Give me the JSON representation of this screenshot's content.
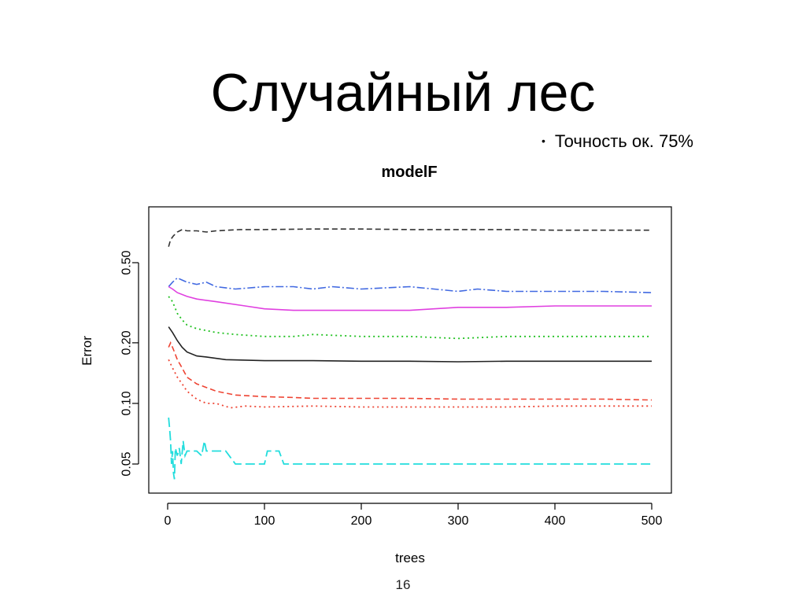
{
  "slide": {
    "title": "Случайный лес",
    "bullet": "Точность ок. 75%",
    "bullet_marker": "•",
    "page_number": "16"
  },
  "chart_data": {
    "type": "line",
    "title": "modelF",
    "xlabel": "trees",
    "ylabel": "Error",
    "xlim": [
      0,
      500
    ],
    "ylim": [
      0.04,
      0.8
    ],
    "y_scale": "log",
    "x_ticks": [
      0,
      100,
      200,
      300,
      400,
      500
    ],
    "x_tick_labels": [
      "0",
      "100",
      "200",
      "300",
      "400",
      "500"
    ],
    "y_ticks": [
      0.05,
      0.1,
      0.2,
      0.5
    ],
    "y_tick_labels": [
      "0.05",
      "0.10",
      "0.20",
      "0.50"
    ],
    "grid": false,
    "legend": "none",
    "series": [
      {
        "color": "#333333",
        "dash": "7 4",
        "width": 1.6,
        "x": [
          1,
          3,
          6,
          10,
          15,
          20,
          30,
          40,
          50,
          75,
          100,
          150,
          200,
          250,
          300,
          350,
          400,
          450,
          500
        ],
        "y": [
          0.6,
          0.65,
          0.68,
          0.71,
          0.73,
          0.72,
          0.72,
          0.71,
          0.72,
          0.73,
          0.73,
          0.735,
          0.735,
          0.73,
          0.73,
          0.73,
          0.725,
          0.725,
          0.725
        ]
      },
      {
        "color": "#4169e1",
        "dash": "10 3 2 3",
        "width": 1.6,
        "x": [
          1,
          5,
          10,
          15,
          20,
          30,
          40,
          50,
          70,
          100,
          130,
          150,
          170,
          200,
          250,
          300,
          320,
          350,
          400,
          450,
          500
        ],
        "y": [
          0.38,
          0.4,
          0.42,
          0.41,
          0.4,
          0.39,
          0.4,
          0.38,
          0.37,
          0.38,
          0.38,
          0.37,
          0.38,
          0.37,
          0.38,
          0.36,
          0.37,
          0.36,
          0.36,
          0.36,
          0.355
        ]
      },
      {
        "color": "#e040e0",
        "dash": "",
        "width": 1.6,
        "x": [
          1,
          5,
          10,
          20,
          30,
          50,
          80,
          100,
          130,
          150,
          200,
          250,
          300,
          350,
          400,
          450,
          500
        ],
        "y": [
          0.38,
          0.37,
          0.355,
          0.34,
          0.33,
          0.32,
          0.305,
          0.295,
          0.29,
          0.29,
          0.29,
          0.29,
          0.3,
          0.3,
          0.305,
          0.305,
          0.305
        ]
      },
      {
        "color": "#22c122",
        "dash": "2 4",
        "width": 1.8,
        "x": [
          1,
          5,
          10,
          15,
          20,
          30,
          40,
          50,
          70,
          100,
          130,
          150,
          200,
          250,
          300,
          350,
          400,
          450,
          500
        ],
        "y": [
          0.34,
          0.32,
          0.28,
          0.26,
          0.245,
          0.235,
          0.23,
          0.225,
          0.22,
          0.215,
          0.215,
          0.22,
          0.215,
          0.215,
          0.21,
          0.215,
          0.215,
          0.215,
          0.215
        ]
      },
      {
        "color": "#222222",
        "dash": "",
        "width": 1.6,
        "x": [
          1,
          5,
          10,
          15,
          20,
          30,
          40,
          60,
          80,
          100,
          150,
          200,
          250,
          300,
          350,
          400,
          450,
          500
        ],
        "y": [
          0.24,
          0.225,
          0.205,
          0.19,
          0.18,
          0.172,
          0.17,
          0.165,
          0.164,
          0.163,
          0.163,
          0.162,
          0.162,
          0.161,
          0.162,
          0.162,
          0.162,
          0.162
        ]
      },
      {
        "color": "#ee4433",
        "dash": "7 4",
        "width": 1.6,
        "x": [
          1,
          3,
          6,
          10,
          15,
          20,
          30,
          40,
          50,
          70,
          100,
          130,
          150,
          200,
          250,
          300,
          350,
          400,
          450,
          500
        ],
        "y": [
          0.19,
          0.2,
          0.185,
          0.165,
          0.15,
          0.135,
          0.125,
          0.12,
          0.115,
          0.11,
          0.108,
          0.107,
          0.106,
          0.106,
          0.106,
          0.105,
          0.105,
          0.105,
          0.105,
          0.104
        ]
      },
      {
        "color": "#ee4433",
        "dash": "2 4",
        "width": 1.8,
        "x": [
          1,
          5,
          10,
          15,
          20,
          30,
          40,
          50,
          65,
          80,
          100,
          150,
          200,
          250,
          300,
          350,
          400,
          450,
          500
        ],
        "y": [
          0.165,
          0.15,
          0.135,
          0.125,
          0.115,
          0.105,
          0.1,
          0.1,
          0.095,
          0.097,
          0.096,
          0.097,
          0.096,
          0.096,
          0.096,
          0.096,
          0.097,
          0.097,
          0.097
        ]
      },
      {
        "color": "#22dddd",
        "dash": "12 5",
        "width": 1.8,
        "x": [
          1,
          2,
          3,
          4,
          5,
          6,
          7,
          8,
          10,
          12,
          14,
          16,
          18,
          20,
          25,
          30,
          35,
          38,
          40,
          45,
          60,
          70,
          100,
          103,
          115,
          120,
          150,
          200,
          250,
          300,
          350,
          400,
          450,
          500
        ],
        "y": [
          0.085,
          0.075,
          0.065,
          0.05,
          0.058,
          0.045,
          0.042,
          0.06,
          0.055,
          0.06,
          0.05,
          0.065,
          0.055,
          0.058,
          0.058,
          0.058,
          0.055,
          0.065,
          0.058,
          0.058,
          0.058,
          0.05,
          0.05,
          0.058,
          0.058,
          0.05,
          0.05,
          0.05,
          0.05,
          0.05,
          0.05,
          0.05,
          0.05,
          0.05
        ]
      }
    ]
  }
}
